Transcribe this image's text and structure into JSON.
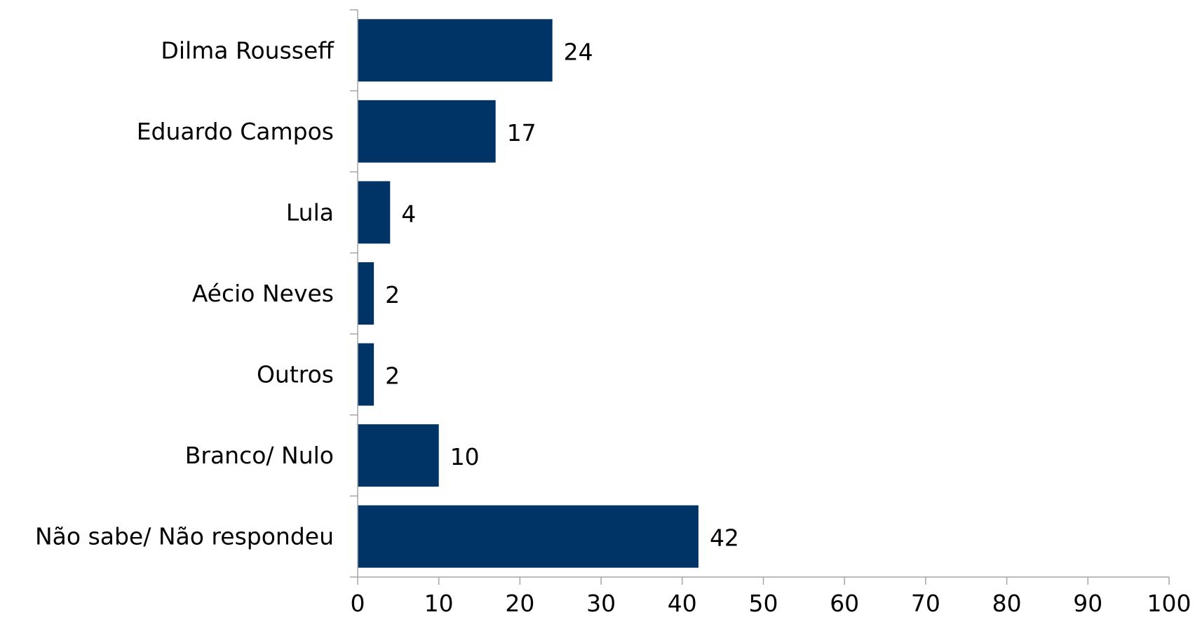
{
  "chart_data": {
    "type": "bar",
    "orientation": "horizontal",
    "categories": [
      "Dilma Rousseff",
      "Eduardo Campos",
      "Lula",
      "Aécio Neves",
      "Outros",
      "Branco/ Nulo",
      "Não sabe/ Não respondeu"
    ],
    "values": [
      24,
      17,
      4,
      2,
      2,
      10,
      42
    ],
    "data_labels": [
      "24",
      "17",
      "4",
      "2",
      "2",
      "10",
      "42"
    ],
    "title": "",
    "xlabel": "",
    "ylabel": "",
    "xlim": [
      0,
      100
    ],
    "x_ticks": [
      0,
      10,
      20,
      30,
      40,
      50,
      60,
      70,
      80,
      90,
      100
    ],
    "x_tick_labels": [
      "0",
      "10",
      "20",
      "30",
      "40",
      "50",
      "60",
      "70",
      "80",
      "90",
      "100"
    ],
    "grid": false,
    "legend": "none",
    "bar_color": "#003366",
    "axis_color": "#a6a6a6"
  }
}
